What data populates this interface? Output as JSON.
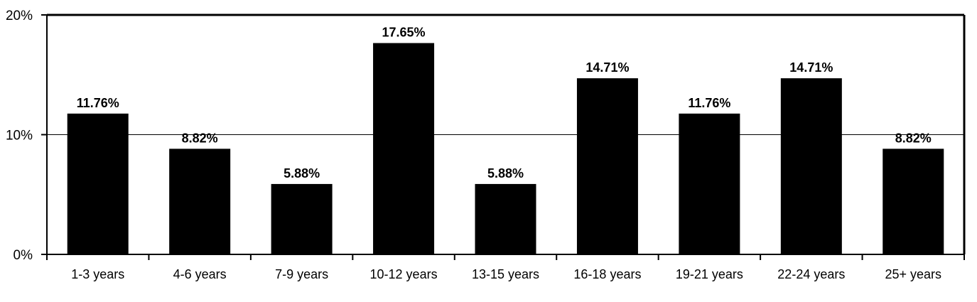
{
  "chart_data": {
    "type": "bar",
    "categories": [
      "1-3 years",
      "4-6 years",
      "7-9 years",
      "10-12 years",
      "13-15 years",
      "16-18 years",
      "19-21 years",
      "22-24 years",
      "25+ years"
    ],
    "values": [
      11.76,
      8.82,
      5.88,
      17.65,
      5.88,
      14.71,
      11.76,
      14.71,
      8.82
    ],
    "data_labels": [
      "11.76%",
      "8.82%",
      "5.88%",
      "17.65%",
      "5.88%",
      "14.71%",
      "11.76%",
      "14.71%",
      "8.82%"
    ],
    "y_ticks": [
      0,
      10,
      20
    ],
    "y_tick_labels": [
      "0%",
      "10%",
      "20%"
    ],
    "ylim": [
      0,
      20
    ],
    "grid": true,
    "legend": "none",
    "bar_color": "#000000",
    "title": "",
    "xlabel": "",
    "ylabel": ""
  }
}
